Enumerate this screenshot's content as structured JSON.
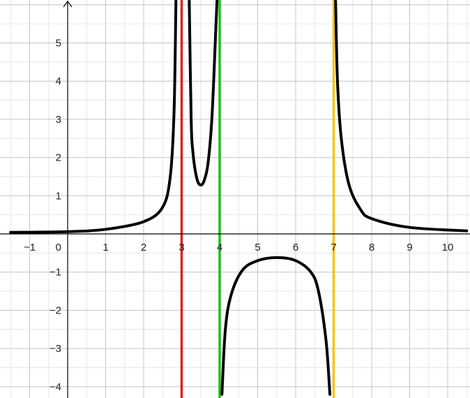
{
  "chart_data": {
    "type": "line",
    "title": "",
    "xlabel": "",
    "ylabel": "",
    "xlim": [
      -1.5,
      10.5
    ],
    "ylim": [
      -4.2,
      6.1
    ],
    "grid": true,
    "x_ticks": [
      -1,
      1,
      2,
      3,
      4,
      5,
      6,
      7,
      8,
      9,
      10
    ],
    "x_tick_labels": [
      "−1",
      "1",
      "2",
      "3",
      "4",
      "5",
      "6",
      "7",
      "8",
      "9",
      "10"
    ],
    "y_ticks": [
      -4,
      -3,
      -2,
      -1,
      1,
      2,
      3,
      4,
      5
    ],
    "y_tick_labels": [
      "−4",
      "−3",
      "−2",
      "−1",
      "1",
      "2",
      "3",
      "4",
      "5"
    ],
    "origin_label": "0",
    "curve": {
      "color": "#000000",
      "branches": [
        {
          "points": [
            [
              -1.5,
              0.04
            ],
            [
              0,
              0.06
            ],
            [
              1,
              0.12
            ],
            [
              2,
              0.32
            ],
            [
              2.5,
              0.7
            ],
            [
              2.7,
              1.5
            ],
            [
              2.8,
              3.2
            ],
            [
              2.85,
              6.1
            ]
          ]
        },
        {
          "points": [
            [
              3.2,
              6.1
            ],
            [
              3.25,
              3.0
            ],
            [
              3.3,
              2.1
            ],
            [
              3.4,
              1.45
            ],
            [
              3.5,
              1.28
            ],
            [
              3.6,
              1.42
            ],
            [
              3.7,
              1.9
            ],
            [
              3.8,
              3.1
            ],
            [
              3.9,
              5.4
            ],
            [
              3.93,
              6.1
            ]
          ]
        },
        {
          "points": [
            [
              4.06,
              -4.2
            ],
            [
              4.15,
              -2.5
            ],
            [
              4.3,
              -1.6
            ],
            [
              4.6,
              -0.95
            ],
            [
              5.0,
              -0.7
            ],
            [
              5.5,
              -0.62
            ],
            [
              6.0,
              -0.7
            ],
            [
              6.4,
              -1.0
            ],
            [
              6.6,
              -1.5
            ],
            [
              6.8,
              -2.8
            ],
            [
              6.9,
              -4.2
            ]
          ]
        },
        {
          "points": [
            [
              7.05,
              6.1
            ],
            [
              7.1,
              4.0
            ],
            [
              7.2,
              2.5
            ],
            [
              7.4,
              1.3
            ],
            [
              7.7,
              0.65
            ],
            [
              8.0,
              0.4
            ],
            [
              9.0,
              0.17
            ],
            [
              10.5,
              0.08
            ]
          ]
        }
      ]
    },
    "vertical_lines": [
      {
        "x": 3,
        "color": "#e02020"
      },
      {
        "x": 4,
        "color": "#22bb22"
      },
      {
        "x": 7,
        "color": "#f5c518"
      }
    ],
    "colors": {
      "grid": "#cccccc",
      "axis": "#000000"
    }
  }
}
